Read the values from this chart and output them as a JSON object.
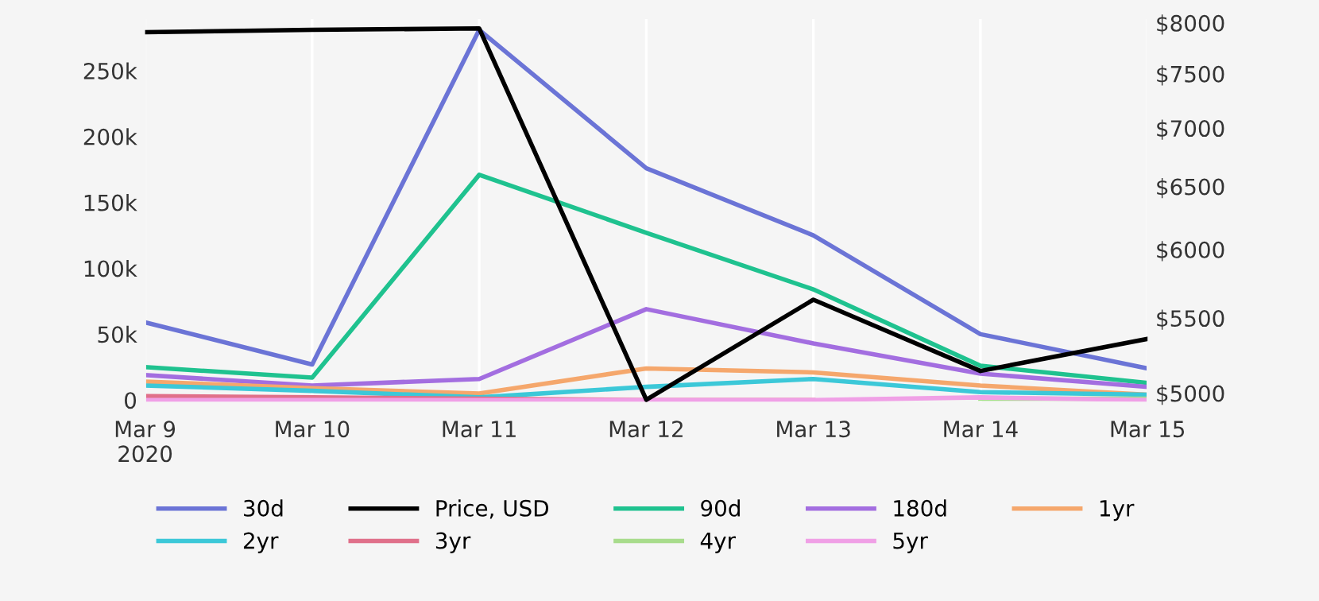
{
  "chart_data": {
    "type": "line",
    "x": [
      "2020-03-09",
      "2020-03-10",
      "2020-03-11",
      "2020-03-12",
      "2020-03-13",
      "2020-03-14",
      "2020-03-15"
    ],
    "series": [
      {
        "name": "30d",
        "color": "#6b74d6",
        "values": [
          59000,
          27000,
          281000,
          176000,
          125000,
          50000,
          24000
        ]
      },
      {
        "name": "Price, USD",
        "color": "#000000",
        "axis": "y2",
        "values": [
          7906,
          7930,
          7944,
          4958,
          5630,
          5143,
          5357
        ]
      },
      {
        "name": "90d",
        "color": "#1fc28f",
        "values": [
          25000,
          17000,
          171000,
          127000,
          84000,
          26000,
          13000
        ]
      },
      {
        "name": "180d",
        "color": "#a36ee0",
        "values": [
          19000,
          11000,
          16000,
          69000,
          43000,
          20000,
          10000
        ]
      },
      {
        "name": "1yr",
        "color": "#f5a76c",
        "values": [
          14000,
          9000,
          5000,
          24000,
          21000,
          11000,
          4000
        ]
      },
      {
        "name": "2yr",
        "color": "#3cc8d8",
        "values": [
          11000,
          7000,
          2000,
          10000,
          16000,
          6000,
          4000
        ]
      },
      {
        "name": "3yr",
        "color": "#e0708a",
        "values": [
          3000,
          2000,
          1000,
          0,
          0,
          null,
          null
        ]
      },
      {
        "name": "4yr",
        "color": "#a8dc8c",
        "values": [
          null,
          null,
          null,
          null,
          null,
          1000,
          1000
        ]
      },
      {
        "name": "5yr",
        "color": "#f0a0e6",
        "values": [
          0,
          0,
          0,
          0,
          0,
          2000,
          0
        ]
      }
    ],
    "xlim": [
      "2020-03-09",
      "2020-03-15"
    ],
    "xticks": [
      {
        "value": "2020-03-09",
        "label": "Mar 9\n2020"
      },
      {
        "value": "2020-03-10",
        "label": "Mar 10"
      },
      {
        "value": "2020-03-11",
        "label": "Mar 11"
      },
      {
        "value": "2020-03-12",
        "label": "Mar 12"
      },
      {
        "value": "2020-03-13",
        "label": "Mar 13"
      },
      {
        "value": "2020-03-14",
        "label": "Mar 14"
      },
      {
        "value": "2020-03-15",
        "label": "Mar 15"
      }
    ],
    "ylim": [
      -2000,
      290000
    ],
    "yticks": [
      0,
      {
        "value": 50000,
        "label": "50k"
      },
      {
        "value": 100000,
        "label": "100k"
      },
      {
        "value": 150000,
        "label": "150k"
      },
      {
        "value": 200000,
        "label": "200k"
      },
      {
        "value": 250000,
        "label": "250k"
      }
    ],
    "log": "y2",
    "y2lim": [
      4940,
      8050
    ],
    "y2ticks": [
      {
        "value": 5000,
        "label": "$5000"
      },
      {
        "value": 5500,
        "label": "$5500"
      },
      {
        "value": 6000,
        "label": "$6000"
      },
      {
        "value": 6500,
        "label": "$6500"
      },
      {
        "value": 7000,
        "label": "$7000"
      },
      {
        "value": 7500,
        "label": "$7500"
      },
      {
        "value": 8000,
        "label": "$8000"
      }
    ],
    "grid": "x",
    "legend": "bottom",
    "marker": "none",
    "line_style": "solid"
  }
}
